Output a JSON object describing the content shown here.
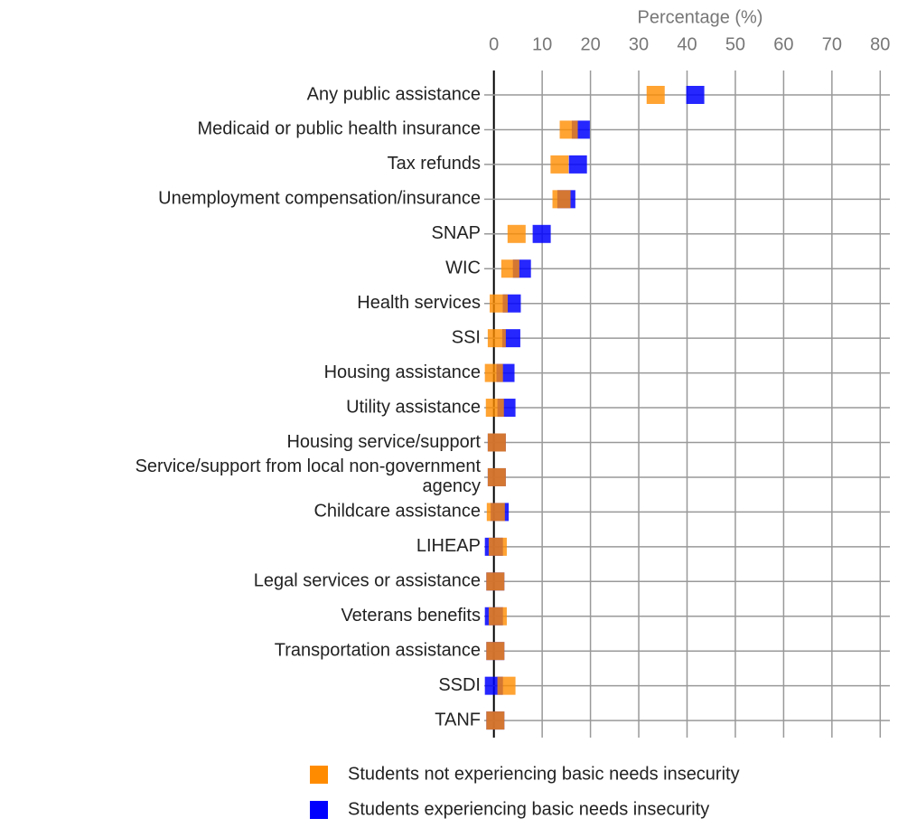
{
  "chart_data": {
    "type": "dot",
    "x_label": "Percentage (%)",
    "categories": [
      "Any public assistance",
      "Medicaid or public health insurance",
      "Tax refunds",
      "Unemployment compensation/insurance",
      "SNAP",
      "WIC",
      "Health services",
      "SSI",
      "Housing assistance",
      "Utility assistance",
      "Housing service/support",
      "Service/support from local non-government agency",
      "Childcare assistance",
      "LIHEAP",
      "Legal services or assistance",
      "Veterans benefits",
      "Transportation assistance",
      "SSDI",
      "TANF"
    ],
    "series": [
      {
        "name": "Students not experiencing basic needs insecurity",
        "color": "#ff8c00",
        "values": [
          33.5,
          15.5,
          13.6,
          14,
          4.7,
          3.4,
          1,
          0.6,
          0,
          0.2,
          0.6,
          0.6,
          0.4,
          0.8,
          0.3,
          0.8,
          0.3,
          2.6,
          0.3
        ]
      },
      {
        "name": "Students experiencing basic needs insecurity",
        "color": "#0000ff",
        "values": [
          41.7,
          18,
          17.4,
          15,
          9.9,
          5.8,
          3.7,
          3.6,
          2.4,
          2.6,
          0.6,
          0.6,
          1.2,
          0,
          0.3,
          0,
          0.3,
          0,
          0.3
        ]
      }
    ],
    "xlim": [
      -2,
      82
    ],
    "xticks": [
      0,
      10,
      20,
      30,
      40,
      50,
      60,
      70,
      80
    ],
    "grid": true
  }
}
